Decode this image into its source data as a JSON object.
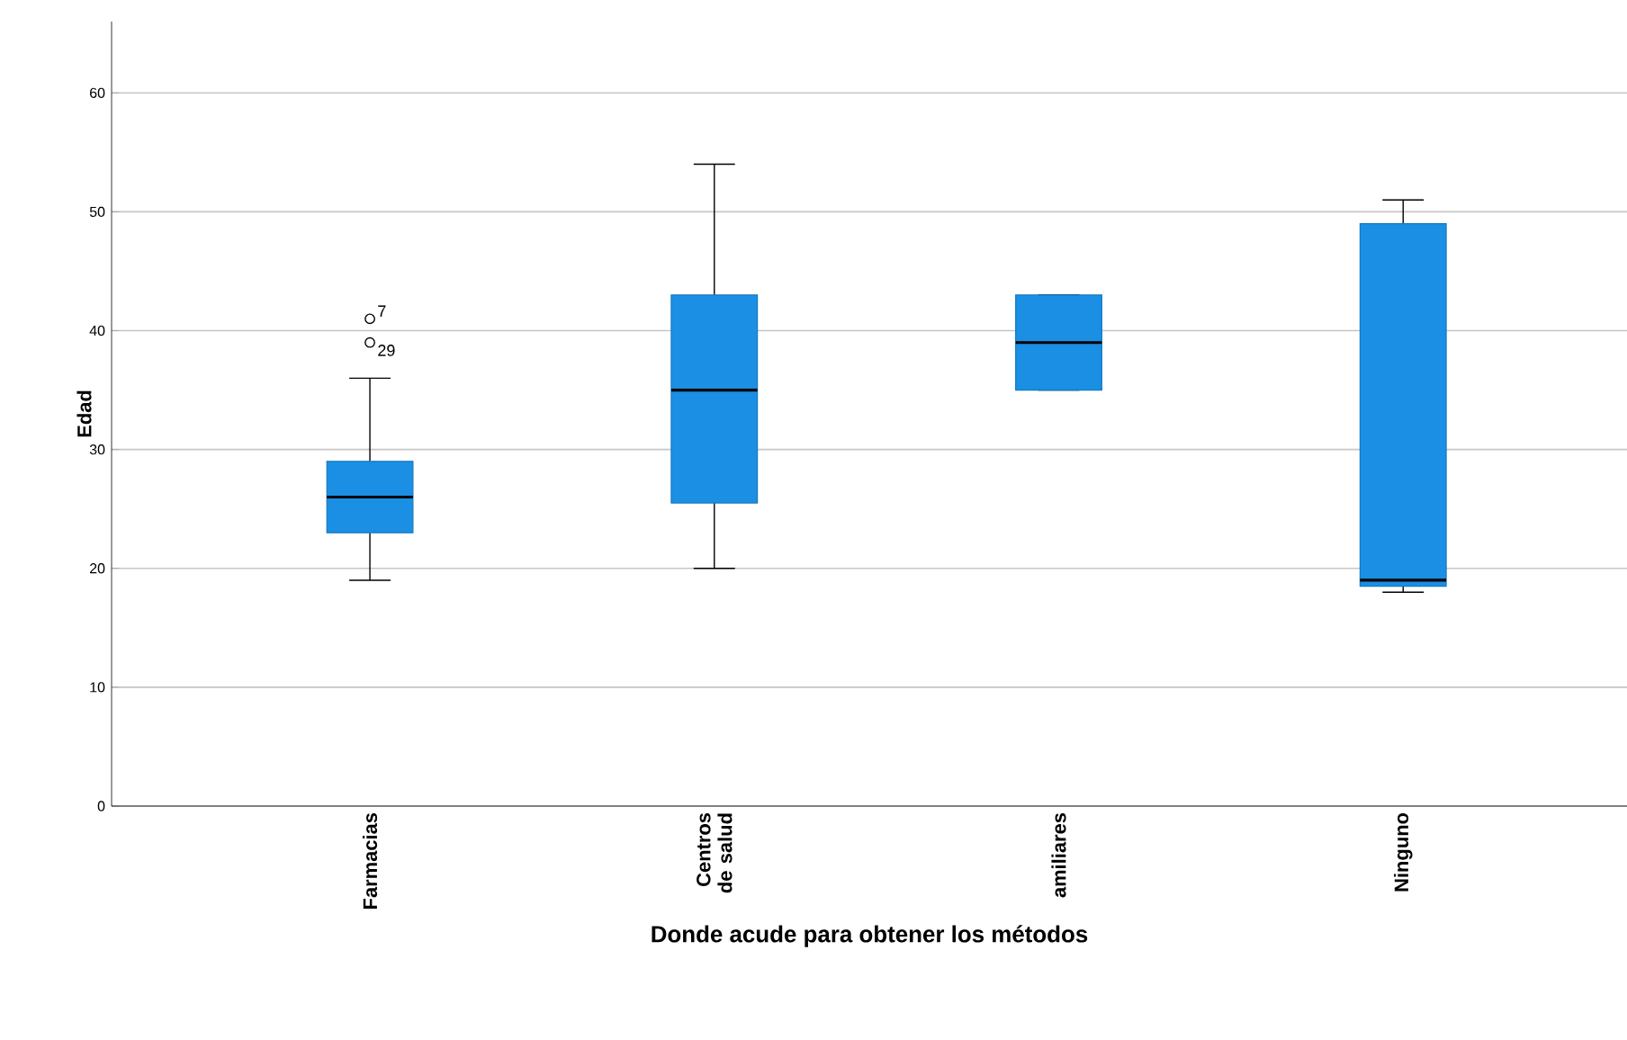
{
  "chart_data": {
    "type": "box",
    "xlabel": "Donde acude para obtener los métodos",
    "ylabel": "Edad",
    "categories": [
      "Farmacias",
      "Centros de salud",
      "amiliares",
      "Ninguno"
    ],
    "boxes": [
      {
        "low": 19,
        "q1": 23,
        "median": 26,
        "q3": 29,
        "high": 36,
        "outliers": [
          39,
          41
        ]
      },
      {
        "low": 20,
        "q1": 25.5,
        "median": 35,
        "q3": 43,
        "high": 54
      },
      {
        "low": 35,
        "q1": 35,
        "median": 39,
        "q3": 43,
        "high": 43
      },
      {
        "low": 18,
        "q1": 18.5,
        "median": 19,
        "q3": 49,
        "high": 51
      }
    ],
    "color": "#1a8fe3",
    "ylim": [
      0,
      66
    ],
    "yticks": [
      0,
      10,
      20,
      30,
      40,
      50,
      60
    ],
    "grid": "y",
    "annotations": [
      "7",
      "29"
    ]
  }
}
